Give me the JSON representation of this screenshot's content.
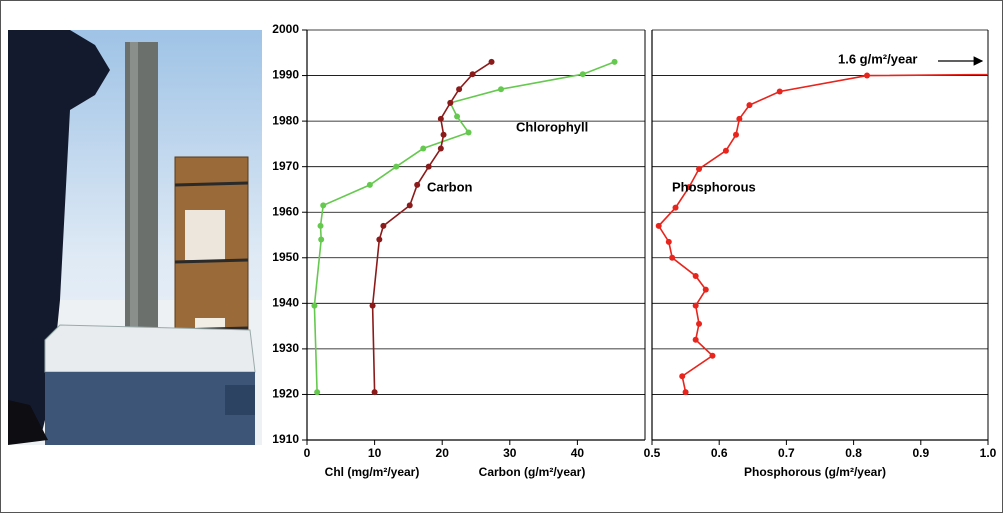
{
  "chart_data": [
    {
      "type": "line",
      "xlabels": [
        "Chl (mg/m²/year)",
        "Carbon (g/m²/year)"
      ],
      "xlim": [
        0,
        50
      ],
      "xticks": [
        0,
        10,
        20,
        30,
        40
      ],
      "ylim": [
        1910,
        2000
      ],
      "yticks": [
        1910,
        1920,
        1930,
        1940,
        1950,
        1960,
        1970,
        1980,
        1990,
        2000
      ],
      "grid": true,
      "series": [
        {
          "name": "Chlorophyll",
          "color": "#66c94f",
          "years": [
            1993,
            1990.3,
            1987,
            1984,
            1981,
            1977.5,
            1974,
            1970,
            1966,
            1961.5,
            1957,
            1954,
            1939.5,
            1920.5
          ],
          "values": [
            45.5,
            40.8,
            28.7,
            21.2,
            22.2,
            23.9,
            17.2,
            13.2,
            9.3,
            2.4,
            2.0,
            2.1,
            1.1,
            1.5
          ]
        },
        {
          "name": "Carbon",
          "color": "#8b1a1a",
          "years": [
            1993,
            1990.3,
            1987,
            1984,
            1980.5,
            1977,
            1974,
            1970,
            1966,
            1961.5,
            1957,
            1954,
            1939.5,
            1920.5
          ],
          "values": [
            27.3,
            24.5,
            22.5,
            21.2,
            19.8,
            20.2,
            19.8,
            18.0,
            16.3,
            15.2,
            11.3,
            10.7,
            9.7,
            10.0
          ]
        }
      ]
    },
    {
      "type": "line",
      "xlabel": "Phosphorous (g/m²/year)",
      "xlim": [
        0.5,
        1.0
      ],
      "xticks": [
        0.5,
        0.6,
        0.7,
        0.8,
        0.9,
        {
          "value": 1.0,
          "label": "1.0"
        }
      ],
      "annotation": "1.6 g/m²/year",
      "series": [
        {
          "name": "Phosphorous",
          "color": "#e8241c",
          "years": [
            1991,
            1990,
            1986.5,
            1983.5,
            1980.5,
            1977,
            1973.5,
            1969.5,
            1965.5,
            1961,
            1957,
            1953.5,
            1950,
            1946,
            1943,
            1939.5,
            1935.5,
            1932,
            1928.5,
            1924,
            1920.5
          ],
          "values": [
            1.6,
            0.82,
            0.69,
            0.645,
            0.63,
            0.625,
            0.61,
            0.57,
            0.555,
            0.535,
            0.51,
            0.525,
            0.53,
            0.565,
            0.58,
            0.565,
            0.57,
            0.565,
            0.59,
            0.545,
            0.55
          ]
        }
      ]
    }
  ]
}
